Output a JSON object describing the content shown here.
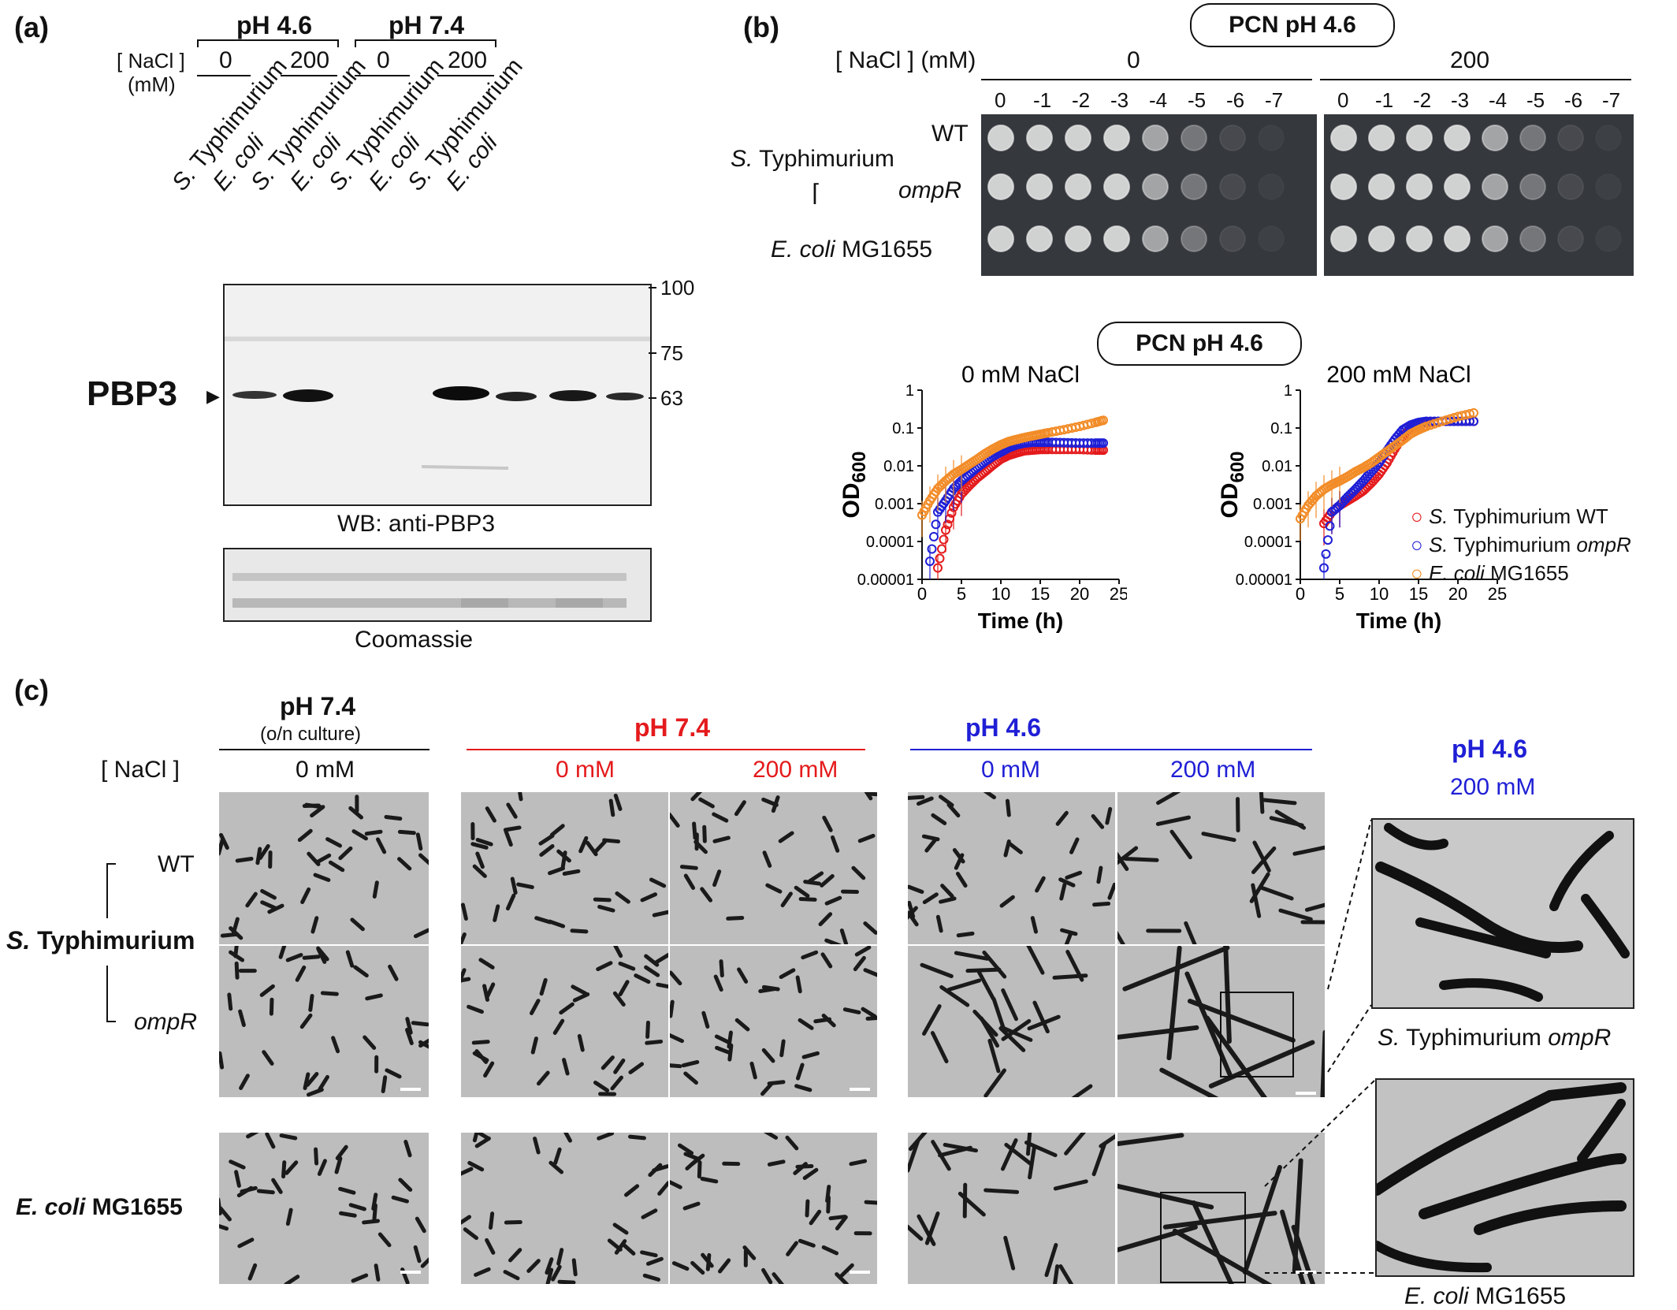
{
  "panel_a": {
    "label": "(a)",
    "ph_groups": [
      "pH 4.6",
      "pH 7.4"
    ],
    "nacl_label_1": "[ NaCl ]",
    "nacl_label_2": "(mM)",
    "nacl_values": [
      "0",
      "200",
      "0",
      "200"
    ],
    "lanes": [
      {
        "genus": "S.",
        "species": "Typhimurium"
      },
      {
        "genus": "E.",
        "species": "coli"
      },
      {
        "genus": "S.",
        "species": "Typhimurium"
      },
      {
        "genus": "E.",
        "species": "coli"
      },
      {
        "genus": "S.",
        "species": "Typhimurium"
      },
      {
        "genus": "E.",
        "species": "coli"
      },
      {
        "genus": "S.",
        "species": "Typhimurium"
      },
      {
        "genus": "E.",
        "species": "coli"
      }
    ],
    "markers": [
      "100",
      "75",
      "63"
    ],
    "protein_label": "PBP3",
    "wb_caption": "WB: anti-PBP3",
    "coomassie_caption": "Coomassie"
  },
  "panel_b": {
    "label": "(b)",
    "condition_pill": "PCN pH 4.6",
    "nacl_label": "[ NaCl ] (mM)",
    "nacl_values": [
      "0",
      "200"
    ],
    "dilutions": [
      "0",
      "-1",
      "-2",
      "-3",
      "-4",
      "-5",
      "-6",
      "-7"
    ],
    "strain_group": "Typhimurium",
    "strain_group_genus": "S.",
    "strain_wt": "WT",
    "strain_ompr": "ompR",
    "strain_ecoli_genus": "E. coli",
    "strain_ecoli_name": "MG1655",
    "growth_pill": "PCN pH 4.6"
  },
  "chart_data": [
    {
      "type": "scatter",
      "title": "0 mM NaCl",
      "xlabel": "Time (h)",
      "ylabel_main": "OD",
      "ylabel_sub": "600",
      "yscale": "log",
      "ylim": [
        1e-05,
        1
      ],
      "xlim": [
        0,
        25
      ],
      "xticks": [
        "0",
        "5",
        "10",
        "15",
        "20",
        "25"
      ],
      "yticks": [
        "1",
        "0.1",
        "0.01",
        "0.001",
        "0.0001",
        "0.00001"
      ],
      "series": [
        {
          "color": "#e41a1c",
          "x": [
            2,
            3,
            4,
            5,
            6,
            7,
            8,
            9,
            10,
            11,
            12,
            13,
            14,
            15,
            16,
            18,
            20,
            22,
            23
          ],
          "y": [
            2e-05,
            0.0002,
            0.0008,
            0.0018,
            0.003,
            0.0048,
            0.007,
            0.0105,
            0.015,
            0.019,
            0.022,
            0.025,
            0.026,
            0.027,
            0.027,
            0.027,
            0.027,
            0.026,
            0.026
          ]
        },
        {
          "color": "#1f1fd6",
          "x": [
            1,
            2,
            3,
            4,
            5,
            6,
            7,
            8,
            9,
            10,
            11,
            12,
            13,
            14,
            15,
            16,
            18,
            20,
            22,
            23
          ],
          "y": [
            3e-05,
            0.0006,
            0.0012,
            0.0025,
            0.004,
            0.006,
            0.009,
            0.013,
            0.018,
            0.023,
            0.03,
            0.036,
            0.04,
            0.042,
            0.042,
            0.042,
            0.041,
            0.04,
            0.04,
            0.04
          ]
        },
        {
          "color": "#f28c28",
          "x": [
            0,
            1,
            2,
            3,
            4,
            5,
            6,
            7,
            8,
            9,
            10,
            11,
            12,
            13,
            14,
            15,
            16,
            18,
            20,
            22,
            23
          ],
          "y": [
            0.0005,
            0.0012,
            0.0025,
            0.004,
            0.006,
            0.008,
            0.011,
            0.015,
            0.021,
            0.028,
            0.036,
            0.044,
            0.05,
            0.056,
            0.062,
            0.068,
            0.075,
            0.09,
            0.11,
            0.14,
            0.16
          ]
        }
      ]
    },
    {
      "type": "scatter",
      "title": "200 mM NaCl",
      "xlabel": "Time (h)",
      "ylabel_main": "OD",
      "ylabel_sub": "600",
      "yscale": "log",
      "ylim": [
        1e-05,
        1
      ],
      "xlim": [
        0,
        25
      ],
      "xticks": [
        "0",
        "5",
        "10",
        "15",
        "20",
        "25"
      ],
      "yticks": [
        "1",
        "0.1",
        "0.01",
        "0.001",
        "0.0001",
        "0.00001"
      ],
      "legend": {
        "position": "right",
        "entries": [
          {
            "genus": "S.",
            "name": "Typhimurium WT",
            "italic_suffix": "",
            "color": "#e41a1c"
          },
          {
            "genus": "S.",
            "name": "Typhimurium",
            "italic_suffix": "ompR",
            "color": "#1f1fd6"
          },
          {
            "genus": "E. coli",
            "name": "MG1655",
            "italic_suffix": "",
            "color": "#f28c28"
          }
        ]
      },
      "series": [
        {
          "color": "#e41a1c",
          "x": [
            3,
            4,
            5,
            6,
            7,
            8,
            9,
            10,
            11,
            12,
            13,
            14,
            15,
            16,
            18,
            20,
            22
          ],
          "y": [
            0.0003,
            0.0006,
            0.0009,
            0.0012,
            0.0016,
            0.0022,
            0.0035,
            0.006,
            0.012,
            0.028,
            0.06,
            0.1,
            0.13,
            0.14,
            0.15,
            0.15,
            0.15
          ]
        },
        {
          "color": "#1f1fd6",
          "x": [
            3,
            4,
            5,
            6,
            7,
            8,
            9,
            10,
            11,
            12,
            13,
            14,
            15,
            16,
            18,
            20,
            22
          ],
          "y": [
            2e-05,
            0.0006,
            0.0009,
            0.0015,
            0.0024,
            0.004,
            0.007,
            0.012,
            0.025,
            0.05,
            0.09,
            0.12,
            0.14,
            0.15,
            0.15,
            0.15,
            0.15
          ]
        },
        {
          "color": "#f28c28",
          "x": [
            0,
            1,
            2,
            3,
            4,
            5,
            6,
            7,
            8,
            9,
            10,
            11,
            12,
            13,
            14,
            15,
            16,
            18,
            20,
            22
          ],
          "y": [
            0.0004,
            0.0009,
            0.0016,
            0.0024,
            0.0032,
            0.004,
            0.0052,
            0.007,
            0.009,
            0.012,
            0.017,
            0.024,
            0.034,
            0.048,
            0.07,
            0.09,
            0.11,
            0.15,
            0.2,
            0.25
          ]
        }
      ]
    }
  ],
  "panel_c": {
    "label": "(c)",
    "col1_title": "pH 7.4",
    "col1_sub": "(o/n culture)",
    "nacl_label": "[ NaCl ]",
    "col1_nacl": "0 mM",
    "col2_title": "pH 7.4",
    "col2_nacl": [
      "0 mM",
      "200 mM"
    ],
    "col3_title": "pH 4.6",
    "col3_nacl": [
      "0 mM",
      "200 mM"
    ],
    "inset_title": "pH 4.6",
    "inset_nacl": "200 mM",
    "row_wt": "WT",
    "row_group_genus": "S.",
    "row_group": "Typhimurium",
    "row_ompr": "ompR",
    "row_ecoli_genus": "E. coli",
    "row_ecoli_name": "MG1655",
    "inset1_caption_genus": "S.",
    "inset1_caption": "Typhimurium",
    "inset1_caption_suffix": "ompR",
    "inset2_caption_genus": "E. coli",
    "inset2_caption": "MG1655"
  }
}
